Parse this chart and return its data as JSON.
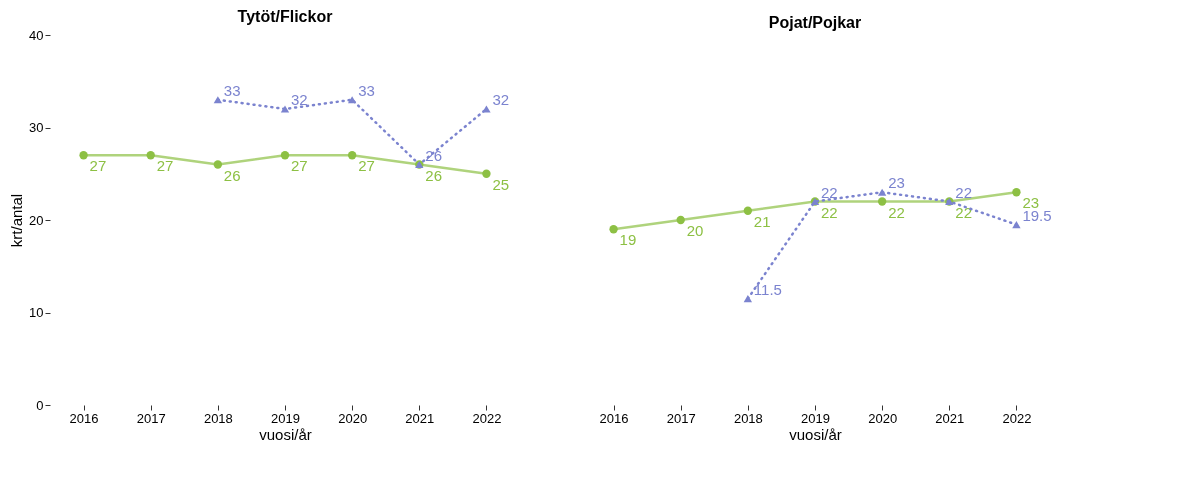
{
  "chart_data": [
    {
      "type": "line",
      "title": "Tytöt/Flickor",
      "xlabel": "vuosi/år",
      "ylabel": "krt/antal",
      "categories": [
        "2016",
        "2017",
        "2018",
        "2019",
        "2020",
        "2021",
        "2022"
      ],
      "ylim": [
        0,
        40
      ],
      "yticks": [
        0,
        10,
        20,
        30,
        40
      ],
      "grid": false,
      "data_labels": true,
      "series": [
        {
          "color": "#8dc044",
          "marker": "circle",
          "line_style": "solid",
          "values": [
            27,
            27,
            26,
            27,
            27,
            26,
            25
          ]
        },
        {
          "color": "#7b83cf",
          "marker": "triangle",
          "line_style": "dotted",
          "values": [
            null,
            null,
            33,
            32,
            33,
            26,
            32
          ]
        }
      ]
    },
    {
      "type": "line",
      "title": "Pojat/Pojkar",
      "xlabel": "vuosi/år",
      "categories": [
        "2016",
        "2017",
        "2018",
        "2019",
        "2020",
        "2021",
        "2022"
      ],
      "ylim": [
        0,
        40
      ],
      "yticks": [
        0,
        10,
        20,
        30,
        40
      ],
      "grid": false,
      "data_labels": true,
      "tick_labels": "x",
      "series": [
        {
          "color": "#8dc044",
          "marker": "circle",
          "line_style": "solid",
          "values": [
            19,
            20,
            21,
            22,
            22,
            22,
            23
          ]
        },
        {
          "color": "#7b83cf",
          "marker": "triangle",
          "line_style": "dotted",
          "values": [
            null,
            null,
            11.5,
            22,
            23,
            22,
            19.5
          ]
        }
      ]
    }
  ]
}
